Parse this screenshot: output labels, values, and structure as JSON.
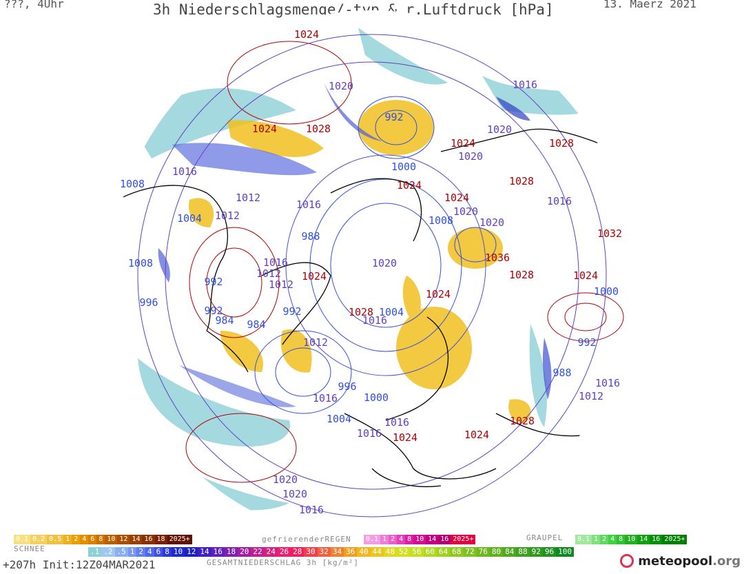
{
  "header": {
    "left": "???, 4Uhr",
    "title": "3h Niederschlagsmenge/-typ & r.Luftdruck [hPa]",
    "date": "13. Maerz 2021"
  },
  "isobar_labels": [
    {
      "v": "1024",
      "c": "#b00000"
    },
    {
      "v": "1020",
      "c": "#6040c0"
    },
    {
      "v": "1016",
      "c": "#6040c0"
    },
    {
      "v": "992",
      "c": "#3050e0"
    },
    {
      "v": "1024",
      "c": "#b00000"
    },
    {
      "v": "1028",
      "c": "#b00000"
    },
    {
      "v": "1000",
      "c": "#3050e0"
    },
    {
      "v": "1024",
      "c": "#b00000"
    },
    {
      "v": "1020",
      "c": "#6040c0"
    },
    {
      "v": "1028",
      "c": "#b00000"
    },
    {
      "v": "1020",
      "c": "#6040c0"
    },
    {
      "v": "1016",
      "c": "#6040c0"
    },
    {
      "v": "1008",
      "c": "#3050e0"
    },
    {
      "v": "1024",
      "c": "#b00000"
    },
    {
      "v": "1012",
      "c": "#6040c0"
    },
    {
      "v": "1016",
      "c": "#6040c0"
    },
    {
      "v": "1028",
      "c": "#b00000"
    },
    {
      "v": "1024",
      "c": "#b00000"
    },
    {
      "v": "1016",
      "c": "#6040c0"
    },
    {
      "v": "1004",
      "c": "#3050e0"
    },
    {
      "v": "1012",
      "c": "#6040c0"
    },
    {
      "v": "1008",
      "c": "#3050e0"
    },
    {
      "v": "1020",
      "c": "#6040c0"
    },
    {
      "v": "1020",
      "c": "#6040c0"
    },
    {
      "v": "1032",
      "c": "#b00000"
    },
    {
      "v": "988",
      "c": "#3050e0"
    },
    {
      "v": "1016",
      "c": "#6040c0"
    },
    {
      "v": "1020",
      "c": "#6040c0"
    },
    {
      "v": "1036",
      "c": "#b00000"
    },
    {
      "v": "1008",
      "c": "#3050e0"
    },
    {
      "v": "1012",
      "c": "#6040c0"
    },
    {
      "v": "992",
      "c": "#3050e0"
    },
    {
      "v": "1012",
      "c": "#6040c0"
    },
    {
      "v": "1024",
      "c": "#b00000"
    },
    {
      "v": "1028",
      "c": "#b00000"
    },
    {
      "v": "1024",
      "c": "#b00000"
    },
    {
      "v": "996",
      "c": "#3050e0"
    },
    {
      "v": "1000",
      "c": "#3050e0"
    },
    {
      "v": "992",
      "c": "#3050e0"
    },
    {
      "v": "992",
      "c": "#3050e0"
    },
    {
      "v": "1028",
      "c": "#b00000"
    },
    {
      "v": "1024",
      "c": "#b00000"
    },
    {
      "v": "1004",
      "c": "#3050e0"
    },
    {
      "v": "984",
      "c": "#3050e0"
    },
    {
      "v": "984",
      "c": "#3050e0"
    },
    {
      "v": "1016",
      "c": "#6040c0"
    },
    {
      "v": "1012",
      "c": "#6040c0"
    },
    {
      "v": "992",
      "c": "#3050e0"
    },
    {
      "v": "988",
      "c": "#3050e0"
    },
    {
      "v": "996",
      "c": "#3050e0"
    },
    {
      "v": "1016",
      "c": "#6040c0"
    },
    {
      "v": "1000",
      "c": "#3050e0"
    },
    {
      "v": "1016",
      "c": "#6040c0"
    },
    {
      "v": "1012",
      "c": "#6040c0"
    },
    {
      "v": "1004",
      "c": "#3050e0"
    },
    {
      "v": "1016",
      "c": "#6040c0"
    },
    {
      "v": "1016",
      "c": "#6040c0"
    },
    {
      "v": "1024",
      "c": "#b00000"
    },
    {
      "v": "1028",
      "c": "#b00000"
    },
    {
      "v": "1024",
      "c": "#b00000"
    },
    {
      "v": "1020",
      "c": "#6040c0"
    },
    {
      "v": "1020",
      "c": "#6040c0"
    },
    {
      "v": "1016",
      "c": "#6040c0"
    }
  ],
  "legend": {
    "schnee_label": "SCHNEE",
    "schnee_values": [
      "0.1",
      "0.2",
      "0.5",
      "1",
      "2",
      "4",
      "6",
      "8",
      "10",
      "12",
      "14",
      "16",
      "18",
      "2025+"
    ],
    "regen_label": "gefrierenderREGEN",
    "regen_values": [
      "0.1",
      "1",
      "2",
      "4",
      "8",
      "10",
      "14",
      "16",
      "2025+"
    ],
    "graupel_label": "GRAUPEL",
    "graupel_values": [
      "0.1",
      "1",
      "2",
      "4",
      "8",
      "10",
      "14",
      "16",
      "2025+"
    ],
    "total_values": [
      ".1",
      ".2",
      ".5",
      "1",
      "2",
      "4",
      "6",
      "8",
      "10",
      "12",
      "14",
      "16",
      "18",
      "20",
      "22",
      "24",
      "26",
      "28",
      "30",
      "32",
      "34",
      "36",
      "40",
      "44",
      "48",
      "52",
      "56",
      "60",
      "64",
      "68",
      "72",
      "76",
      "80",
      "84",
      "88",
      "92",
      "96",
      "100"
    ],
    "total_label": "GESAMTNIEDERSCHLAG 3h [kg/m²]"
  },
  "footer": {
    "run": "+207h Init:12Z04MAR2021",
    "brand": "meteopool",
    "brand_suffix": ".org"
  },
  "colors": {
    "high_isobar": "#b00000",
    "mid_isobar": "#6040c0",
    "low_isobar": "#3050e0",
    "snow": "#e8a000",
    "rain_light": "#8ed0d8",
    "brand_accent": "#e03050"
  }
}
